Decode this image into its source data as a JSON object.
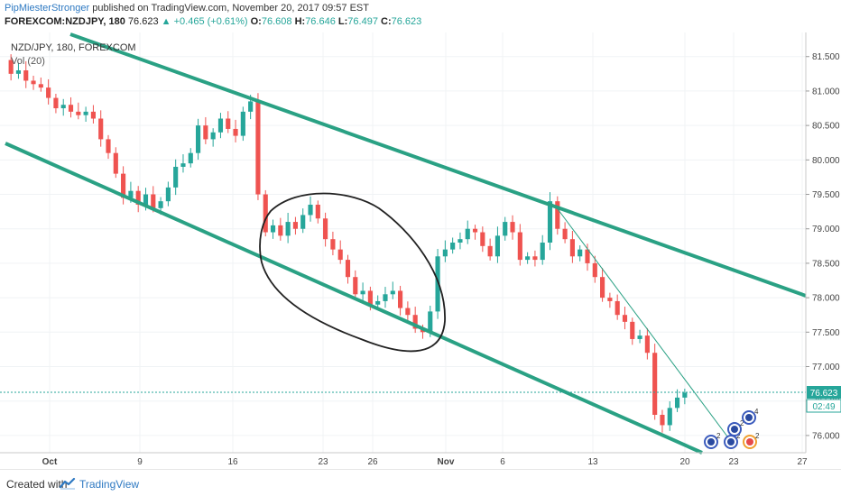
{
  "header": {
    "author": "PipMiesterStronger",
    "published_text": "published on TradingView.com, November 20, 2017 09:57 EST",
    "symbol": "FOREXCOM:NZDJPY, 180",
    "last": "76.623",
    "change": "+0.465 (+0.61%)",
    "open_label": "O:",
    "open": "76.608",
    "high_label": "H:",
    "high": "76.646",
    "low_label": "L:",
    "low": "76.497",
    "close_label": "C:",
    "close": "76.623"
  },
  "chart_data": {
    "type": "candlestick",
    "title": "NZD/JPY, 180, FOREXCOM",
    "indicator": "Vol (20)",
    "ylim": [
      75.75,
      81.85
    ],
    "y_ticks": [
      "81.500",
      "81.000",
      "80.500",
      "80.000",
      "79.500",
      "79.000",
      "78.500",
      "78.000",
      "77.500",
      "77.000",
      "76.500",
      "76.000"
    ],
    "x_ticks": [
      "Oct",
      "9",
      "16",
      "23",
      "26",
      "Nov",
      "6",
      "13",
      "20",
      "23",
      "27"
    ],
    "last_price_label": "76.623",
    "countdown_label": "02:49",
    "price_path": [
      81.45,
      81.25,
      81.3,
      81.15,
      81.1,
      81.05,
      80.9,
      80.75,
      80.8,
      80.7,
      80.65,
      80.7,
      80.6,
      80.3,
      80.1,
      79.8,
      79.45,
      79.55,
      79.35,
      79.5,
      79.3,
      79.4,
      79.6,
      79.9,
      79.95,
      80.1,
      80.5,
      80.3,
      80.4,
      80.6,
      80.45,
      80.35,
      80.7,
      80.85,
      79.5,
      78.95,
      79.05,
      78.9,
      79.1,
      79.0,
      79.2,
      79.35,
      79.15,
      78.85,
      78.7,
      78.55,
      78.3,
      78.05,
      78.1,
      77.9,
      77.95,
      78.05,
      78.1,
      77.85,
      77.75,
      77.55,
      77.5,
      77.8,
      78.6,
      78.7,
      78.8,
      78.85,
      79.0,
      78.95,
      78.75,
      78.6,
      78.9,
      79.1,
      78.95,
      78.55,
      78.6,
      78.55,
      78.8,
      79.4,
      79.0,
      78.85,
      78.6,
      78.7,
      78.5,
      78.3,
      78.0,
      77.95,
      77.75,
      77.65,
      77.4,
      77.45,
      77.2,
      76.3,
      76.15,
      76.4,
      76.55,
      76.62
    ]
  },
  "events": [
    {
      "label": "2"
    },
    {
      "label": "2"
    },
    {
      "label": "2"
    },
    {
      "label": "2"
    },
    {
      "label": "4"
    }
  ],
  "footer": {
    "created_with": "Created with",
    "brand": "TradingView"
  }
}
